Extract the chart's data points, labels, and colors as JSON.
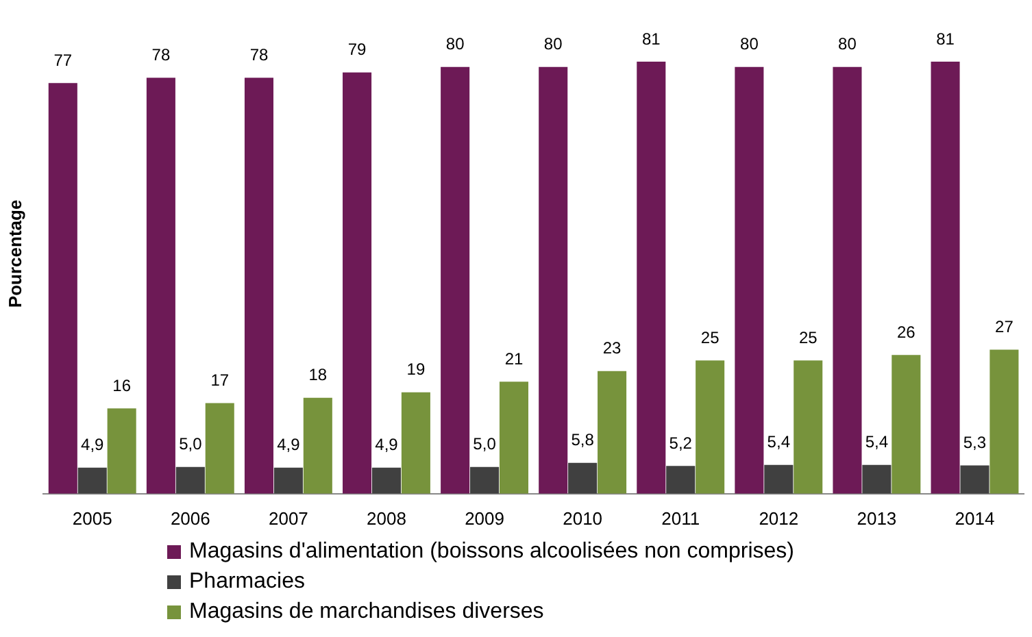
{
  "chart_data": {
    "type": "bar",
    "ylabel": "Pourcentage",
    "legend": "bottom",
    "grid": false,
    "categories": [
      "2005",
      "2006",
      "2007",
      "2008",
      "2009",
      "2010",
      "2011",
      "2012",
      "2013",
      "2014"
    ],
    "series": [
      {
        "name": "Magasins d'alimentation (boissons alcoolisées non comprises)",
        "color": "#6d1a56",
        "values": [
          77,
          78,
          78,
          79,
          80,
          80,
          81,
          80,
          80,
          81
        ],
        "value_labels": [
          "77",
          "78",
          "78",
          "79",
          "80",
          "80",
          "81",
          "80",
          "80",
          "81"
        ]
      },
      {
        "name": "Pharmacies",
        "color": "#404040",
        "values": [
          4.9,
          5.0,
          4.9,
          4.9,
          5.0,
          5.8,
          5.2,
          5.4,
          5.4,
          5.3
        ],
        "value_labels": [
          "4,9",
          "5,0",
          "4,9",
          "4,9",
          "5,0",
          "5,8",
          "5,2",
          "5,4",
          "5,4",
          "5,3"
        ]
      },
      {
        "name": "Magasins de marchandises diverses",
        "color": "#77933c",
        "values": [
          16,
          17,
          18,
          19,
          21,
          23,
          25,
          25,
          26,
          27
        ],
        "value_labels": [
          "16",
          "17",
          "18",
          "19",
          "21",
          "23",
          "25",
          "25",
          "26",
          "27"
        ]
      }
    ]
  }
}
